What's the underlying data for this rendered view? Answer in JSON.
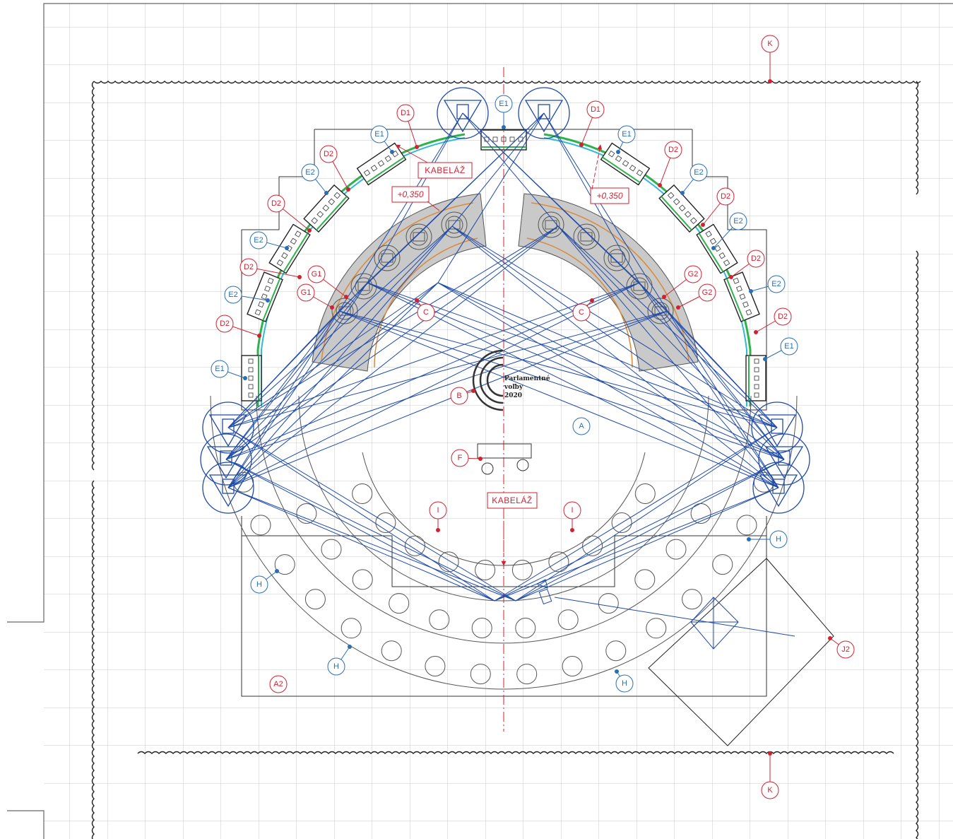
{
  "logo": {
    "line1": "Parlamentné",
    "line2": "voľby",
    "line3": "2020"
  },
  "annotations": {
    "cable_top": "KABELÁŽ",
    "cable_mid": "KABELÁŽ",
    "level_left": "+0,350",
    "level_right": "+0,350"
  },
  "markers": [
    {
      "code": "K",
      "color": "red"
    },
    {
      "code": "K",
      "color": "red"
    },
    {
      "code": "E1",
      "color": "blue"
    },
    {
      "code": "D1",
      "color": "red"
    },
    {
      "code": "D1",
      "color": "red"
    },
    {
      "code": "E1",
      "color": "blue"
    },
    {
      "code": "E1",
      "color": "blue"
    },
    {
      "code": "D2",
      "color": "red"
    },
    {
      "code": "D2",
      "color": "red"
    },
    {
      "code": "E2",
      "color": "blue"
    },
    {
      "code": "E2",
      "color": "blue"
    },
    {
      "code": "D2",
      "color": "red"
    },
    {
      "code": "D2",
      "color": "red"
    },
    {
      "code": "E2",
      "color": "blue"
    },
    {
      "code": "E2",
      "color": "blue"
    },
    {
      "code": "D2",
      "color": "red"
    },
    {
      "code": "D2",
      "color": "red"
    },
    {
      "code": "E2",
      "color": "blue"
    },
    {
      "code": "E2",
      "color": "blue"
    },
    {
      "code": "D2",
      "color": "red"
    },
    {
      "code": "D2",
      "color": "red"
    },
    {
      "code": "E1",
      "color": "blue"
    },
    {
      "code": "E1",
      "color": "blue"
    },
    {
      "code": "G1",
      "color": "red"
    },
    {
      "code": "G2",
      "color": "red"
    },
    {
      "code": "G1",
      "color": "red"
    },
    {
      "code": "G2",
      "color": "red"
    },
    {
      "code": "C",
      "color": "red"
    },
    {
      "code": "C",
      "color": "red"
    },
    {
      "code": "B",
      "color": "red"
    },
    {
      "code": "A",
      "color": "blue"
    },
    {
      "code": "F",
      "color": "red"
    },
    {
      "code": "I",
      "color": "red"
    },
    {
      "code": "I",
      "color": "red"
    },
    {
      "code": "H",
      "color": "blue"
    },
    {
      "code": "H",
      "color": "blue"
    },
    {
      "code": "H",
      "color": "blue"
    },
    {
      "code": "H",
      "color": "blue"
    },
    {
      "code": "A2",
      "color": "red"
    },
    {
      "code": "J2",
      "color": "red"
    }
  ],
  "colors": {
    "red": "#d22232",
    "blue": "#2a6fb3",
    "grid": "#c8c8c8",
    "ink": "#222222",
    "camera": "#1f4aa8"
  }
}
